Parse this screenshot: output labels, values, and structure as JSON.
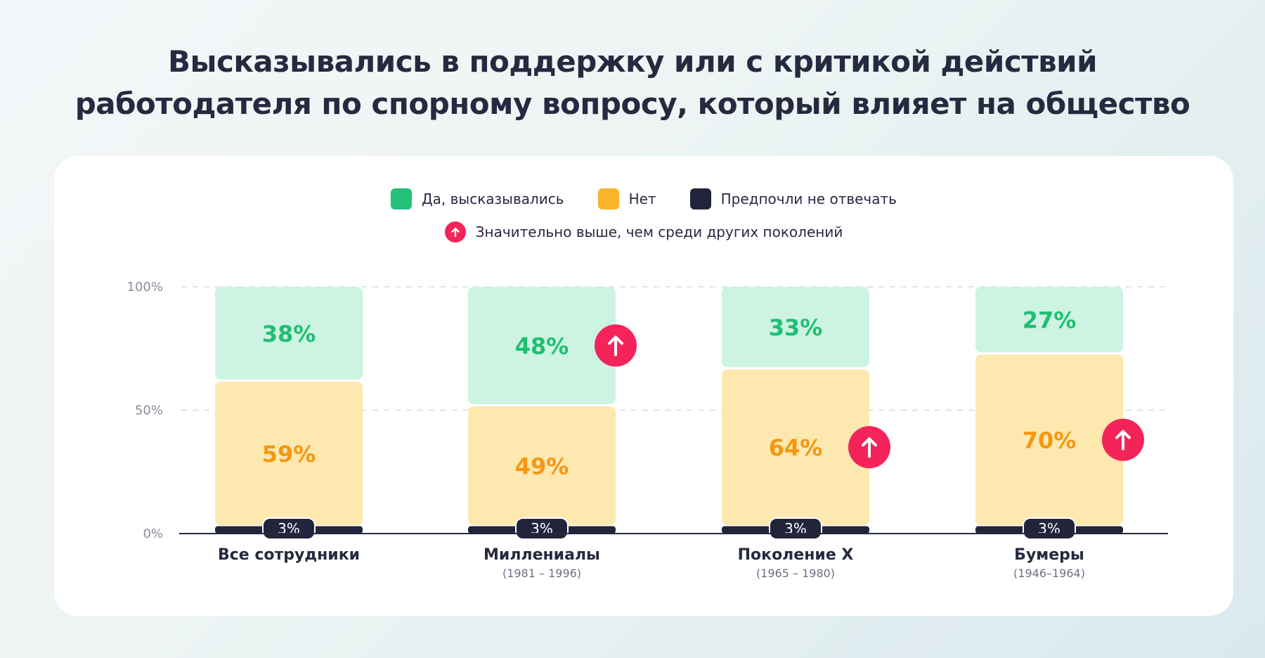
{
  "title": {
    "line1": "Высказывались в поддержку или с критикой действий",
    "line2": "работодателя по спорному вопросу, который влияет на общество"
  },
  "legend": {
    "yes": "Да, высказывались",
    "no": "Нет",
    "prefer_not": "Предпочли не отвечать",
    "significant": "Значительно выше, чем среди других поколений"
  },
  "colors": {
    "yes_fill": "#cdf3e2",
    "yes_text": "#1fbf73",
    "yes_swatch": "#23c07a",
    "no_fill": "#fde8b0",
    "no_text": "#f5970f",
    "no_swatch": "#fbb32a",
    "prefer_not": "#22253a",
    "significant": "#f4245a",
    "axis": "#262a40",
    "grid": "#d9dbe2"
  },
  "chart_data": {
    "type": "bar",
    "stacked": true,
    "categories": [
      "Все сотрудники",
      "Миллениалы",
      "Поколение X",
      "Бумеры"
    ],
    "category_subtitles": [
      "",
      "(1981 – 1996)",
      "(1965 – 1980)",
      "(1946–1964)"
    ],
    "series": [
      {
        "name": "Предпочли не отвечать",
        "values": [
          3,
          3,
          3,
          3
        ],
        "labels": [
          "3%",
          "3%",
          "3%",
          "3%"
        ]
      },
      {
        "name": "Нет",
        "values": [
          59,
          49,
          64,
          70
        ],
        "labels": [
          "59%",
          "49%",
          "64%",
          "70%"
        ]
      },
      {
        "name": "Да, высказывались",
        "values": [
          38,
          48,
          33,
          27
        ],
        "labels": [
          "38%",
          "48%",
          "33%",
          "27%"
        ]
      }
    ],
    "significant_markers": [
      {
        "category": "Миллениалы",
        "series": "Да, высказывались"
      },
      {
        "category": "Поколение X",
        "series": "Нет"
      },
      {
        "category": "Бумеры",
        "series": "Нет"
      }
    ],
    "y_ticks": [
      "0%",
      "50%",
      "100%"
    ],
    "ylim": [
      0,
      100
    ],
    "grid": true,
    "legend_position": "top"
  }
}
